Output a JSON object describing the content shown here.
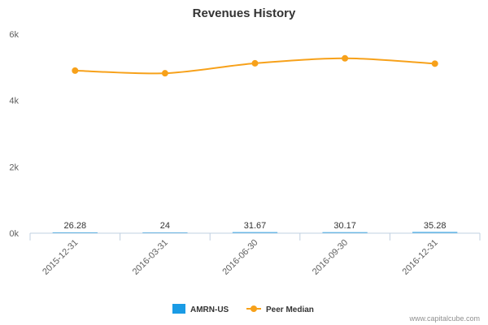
{
  "chart_data": {
    "type": "line",
    "title": "Revenues History",
    "categories": [
      "2015-12-31",
      "2016-03-31",
      "2016-06-30",
      "2016-09-30",
      "2016-12-31"
    ],
    "y_ticks": [
      "0k",
      "2k",
      "4k",
      "6k"
    ],
    "ylim": [
      0,
      6000
    ],
    "series": [
      {
        "name": "AMRN-US",
        "type": "bar",
        "color": "#1a9be5",
        "values": [
          26.28,
          24,
          31.67,
          30.17,
          35.28
        ],
        "labels": [
          "26.28",
          "24",
          "31.67",
          "30.17",
          "35.28"
        ]
      },
      {
        "name": "Peer Median",
        "type": "line",
        "color": "#f7a11a",
        "values": [
          4900,
          4820,
          5120,
          5270,
          5110
        ]
      }
    ],
    "legend_position": "bottom",
    "credit": "www.capitalcube.com"
  }
}
